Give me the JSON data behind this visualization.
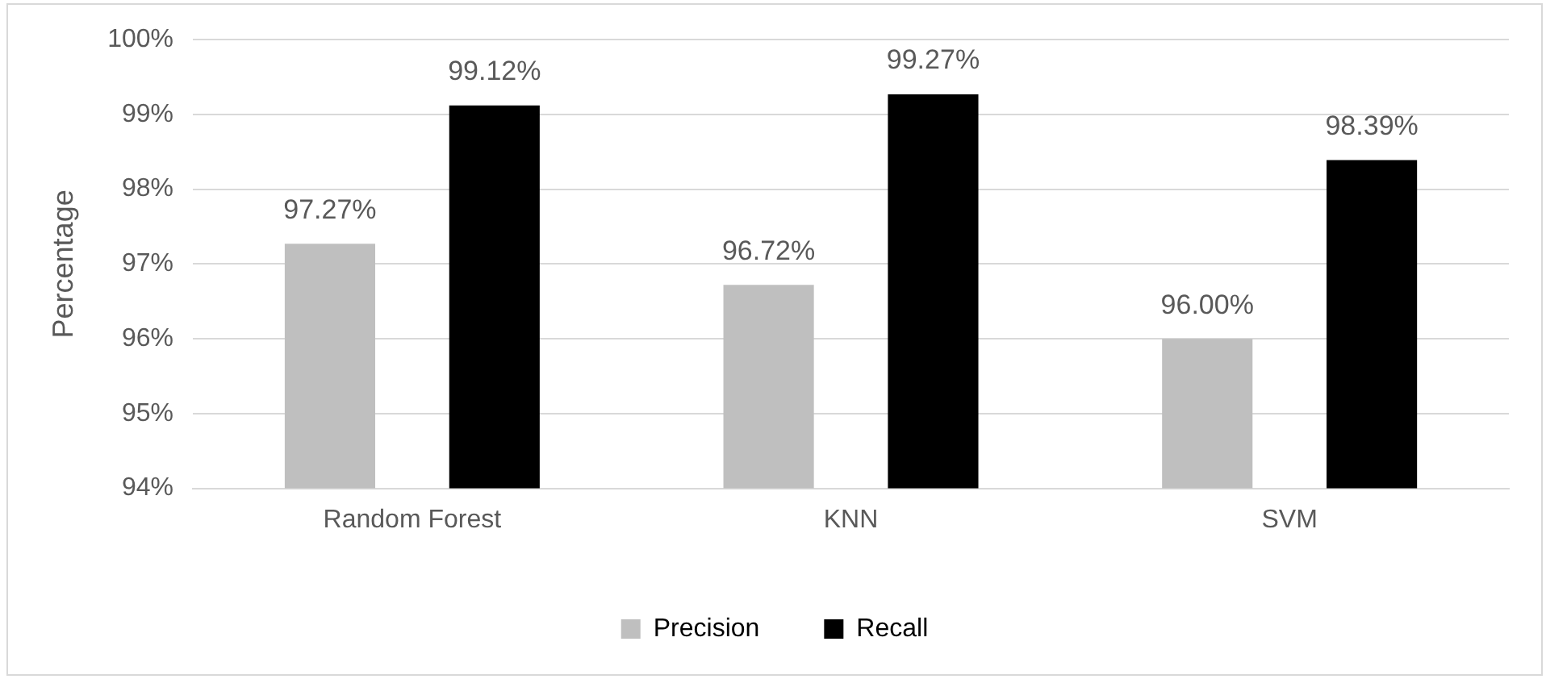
{
  "chart_data": {
    "type": "bar",
    "ylabel": "Percentage",
    "categories": [
      "Random Forest",
      "KNN",
      "SVM"
    ],
    "series": [
      {
        "name": "Precision",
        "color": "#bfbfbf",
        "values": [
          97.27,
          96.72,
          96.0
        ],
        "value_labels": [
          "97.27%",
          "96.72%",
          "96.00%"
        ]
      },
      {
        "name": "Recall",
        "color": "#000000",
        "values": [
          99.12,
          99.27,
          98.39
        ],
        "value_labels": [
          "99.12%",
          "99.27%",
          "98.39%"
        ]
      }
    ],
    "ylim": [
      94,
      100
    ],
    "yticks": [
      {
        "value": 94,
        "label": "94%"
      },
      {
        "value": 95,
        "label": "95%"
      },
      {
        "value": 96,
        "label": "96%"
      },
      {
        "value": 97,
        "label": "97%"
      },
      {
        "value": 98,
        "label": "98%"
      },
      {
        "value": 99,
        "label": "99%"
      },
      {
        "value": 100,
        "label": "100%"
      }
    ],
    "grid": "y",
    "legend": "bottom"
  }
}
